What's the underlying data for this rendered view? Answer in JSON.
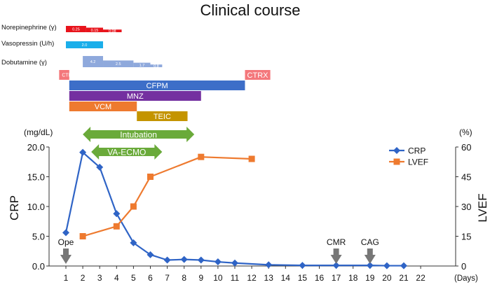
{
  "title": "Clinical course",
  "colors": {
    "norepinephrine": "#e8141c",
    "vasopressin": "#1aaeea",
    "dobutamine": "#8fa9dc",
    "ctrx": "#f4777b",
    "cfpm": "#3d6ec8",
    "mnz": "#7430a0",
    "vcm": "#ee7a2f",
    "teic": "#c49400",
    "intubation": "#6aaa3a",
    "crp": "#2f64c6",
    "lvef": "#ee7a2f",
    "event": "#777777"
  },
  "drugs": [
    {
      "name": "Norepinephrine",
      "label": "Norepinephrine (γ)",
      "unit": "γ",
      "doses": [
        {
          "start_day": 1.0,
          "end_day": 2.2,
          "value": "0.25",
          "level": 1.0
        },
        {
          "start_day": 2.2,
          "end_day": 3.2,
          "value": "0.15",
          "level": 0.72
        },
        {
          "start_day": 3.2,
          "end_day": 4.3,
          "value": "0.08",
          "level": 0.42
        }
      ]
    },
    {
      "name": "Vasopressin",
      "label": "Vasopressin (U/h)",
      "unit": "U/h",
      "doses": [
        {
          "start_day": 1.0,
          "end_day": 3.2,
          "value": "2.0",
          "level": 1.0
        }
      ]
    },
    {
      "name": "Dobutamine",
      "label": "Dobutamine (γ)",
      "unit": "γ",
      "doses": [
        {
          "start_day": 2.0,
          "end_day": 3.2,
          "value": "4.2",
          "level": 1.0
        },
        {
          "start_day": 3.2,
          "end_day": 5.0,
          "value": "2.5",
          "level": 0.6
        },
        {
          "start_day": 5.0,
          "end_day": 6.0,
          "value": "1.7",
          "level": 0.4
        },
        {
          "start_day": 6.0,
          "end_day": 6.7,
          "value": "0.8",
          "level": 0.24
        }
      ]
    }
  ],
  "antibiotics": [
    {
      "name": "CTRX",
      "row": 0,
      "start_day": 0.6,
      "end_day": 1.2,
      "small": true,
      "color_key": "ctrx"
    },
    {
      "name": "CTRX",
      "row": 0,
      "start_day": 11.6,
      "end_day": 13.1,
      "small": false,
      "color_key": "ctrx"
    },
    {
      "name": "CFPM",
      "row": 1,
      "start_day": 1.2,
      "end_day": 11.6,
      "small": false,
      "color_key": "cfpm"
    },
    {
      "name": "MNZ",
      "row": 2,
      "start_day": 1.2,
      "end_day": 9.0,
      "small": false,
      "color_key": "mnz"
    },
    {
      "name": "VCM",
      "row": 3,
      "start_day": 1.2,
      "end_day": 5.2,
      "small": false,
      "color_key": "vcm"
    },
    {
      "name": "TEIC",
      "row": 4,
      "start_day": 5.2,
      "end_day": 8.2,
      "small": false,
      "color_key": "teic"
    }
  ],
  "supports": [
    {
      "name": "Intubation",
      "start_day": 2.0,
      "end_day": 8.6
    },
    {
      "name": "VA-ECMO",
      "start_day": 2.5,
      "end_day": 6.7
    }
  ],
  "events": [
    {
      "label": "Ope",
      "day": 1
    },
    {
      "label": "CMR",
      "day": 17
    },
    {
      "label": "CAG",
      "day": 19
    }
  ],
  "chart_data": {
    "type": "line",
    "title": "Clinical course",
    "xlabel": "Days",
    "x_unit_label": "(Days)",
    "x_ticks": [
      1,
      2,
      3,
      4,
      5,
      6,
      7,
      8,
      9,
      10,
      11,
      12,
      13,
      14,
      15,
      16,
      17,
      18,
      19,
      20,
      21,
      22
    ],
    "xlim": [
      0.5,
      22.3
    ],
    "ylabel_left": "CRP",
    "yunit_left": "(mg/dL)",
    "ylim_left": [
      0,
      20
    ],
    "yticks_left": [
      "0.0",
      "5.0",
      "10.0",
      "15.0",
      "20.0"
    ],
    "ylabel_right": "LVEF",
    "yunit_right": "(%)",
    "ylim_right": [
      0,
      60
    ],
    "yticks_right": [
      "0",
      "15",
      "30",
      "45",
      "60"
    ],
    "legend_position": "top-right",
    "series": [
      {
        "name": "CRP",
        "axis": "left",
        "marker": "diamond",
        "x": [
          1,
          2,
          3,
          4,
          5,
          6,
          7,
          8,
          9,
          10,
          11,
          13,
          15,
          17,
          19,
          20,
          21
        ],
        "values": [
          5.6,
          19.1,
          16.6,
          8.8,
          3.9,
          1.9,
          1.0,
          1.1,
          1.0,
          0.7,
          0.5,
          0.2,
          0.1,
          0.1,
          0.1,
          0.05,
          0.05
        ]
      },
      {
        "name": "LVEF",
        "axis": "right",
        "marker": "square",
        "x": [
          2,
          4,
          5,
          6,
          9,
          12
        ],
        "values": [
          15,
          20,
          30,
          45,
          55,
          54
        ]
      }
    ]
  }
}
